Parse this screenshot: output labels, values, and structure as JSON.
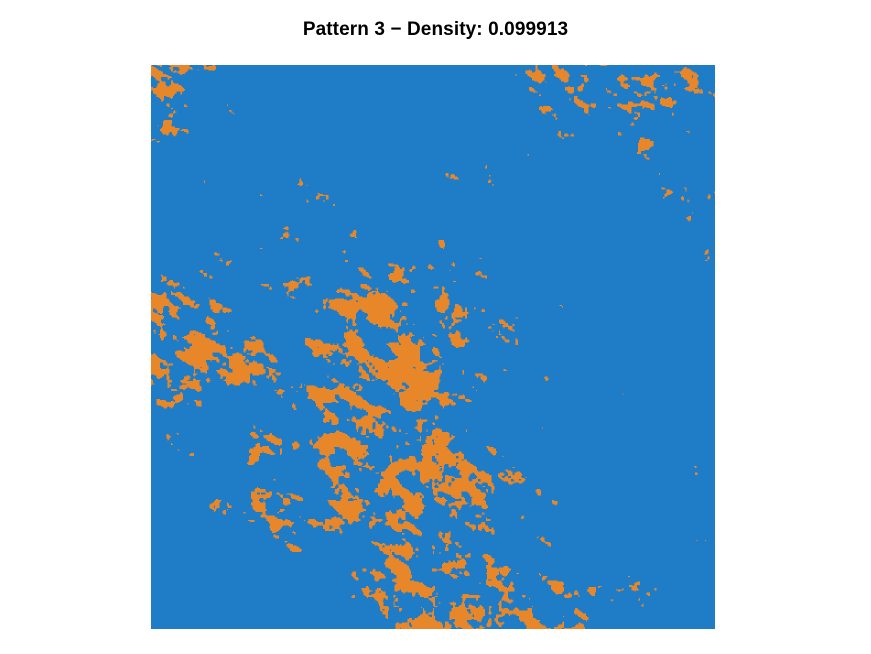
{
  "chart_data": {
    "type": "heatmap",
    "title": "Pattern 3 − Density: 0.099913",
    "density": 0.099913,
    "grid_resolution": 512,
    "categories": [
      "background",
      "pattern"
    ],
    "colors": {
      "background": "#1f7dc8",
      "pattern": "#e8862a"
    },
    "axes_visible": false,
    "grid": false,
    "legend": "none"
  }
}
